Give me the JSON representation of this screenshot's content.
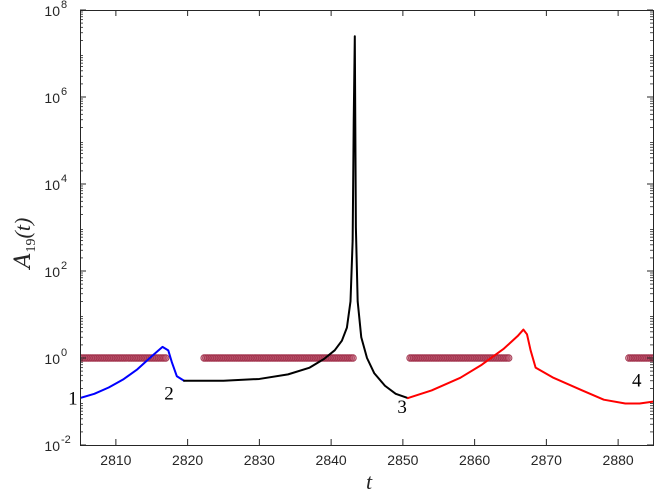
{
  "chart_data": {
    "type": "line",
    "title": "",
    "xlabel": "t",
    "ylabel_main": "A",
    "ylabel_sub": "19",
    "ylabel_rest": "(t)",
    "xlim": [
      2805,
      2885
    ],
    "ylim_log10": [
      -2,
      8
    ],
    "yscale": "log",
    "grid": false,
    "x_ticks": [
      {
        "value": 2810,
        "label": "2810"
      },
      {
        "value": 2820,
        "label": "2820"
      },
      {
        "value": 2830,
        "label": "2830"
      },
      {
        "value": 2840,
        "label": "2840"
      },
      {
        "value": 2850,
        "label": "2850"
      },
      {
        "value": 2860,
        "label": "2860"
      },
      {
        "value": 2870,
        "label": "2870"
      },
      {
        "value": 2880,
        "label": "2880"
      }
    ],
    "y_ticks": [
      {
        "log": -2,
        "label": "10",
        "exp": "-2"
      },
      {
        "log": 0,
        "label": "10",
        "exp": "0"
      },
      {
        "log": 2,
        "label": "10",
        "exp": "2"
      },
      {
        "log": 4,
        "label": "10",
        "exp": "4"
      },
      {
        "log": 6,
        "label": "10",
        "exp": "6"
      },
      {
        "log": 8,
        "label": "10",
        "exp": "8"
      }
    ],
    "series": [
      {
        "color": "#0000ff",
        "x": [
          2805,
          2807,
          2809,
          2811,
          2813,
          2815,
          2816.5,
          2817.3,
          2817.8,
          2818.5,
          2819.5
        ],
        "y": [
          0.12,
          0.15,
          0.21,
          0.32,
          0.55,
          1.1,
          1.8,
          1.5,
          0.8,
          0.38,
          0.3
        ]
      },
      {
        "color": "#000000",
        "x": [
          2819.5,
          2825,
          2830,
          2834,
          2837,
          2839,
          2840.5,
          2841.5,
          2842.2,
          2842.7,
          2843.0,
          2843.15,
          2843.3,
          2843.45,
          2843.7,
          2844.2,
          2845,
          2846,
          2847.5,
          2849,
          2850.7
        ],
        "y": [
          0.3,
          0.3,
          0.33,
          0.42,
          0.6,
          0.95,
          1.5,
          2.5,
          5,
          20,
          500,
          300000,
          25000000,
          1000,
          20,
          3,
          1,
          0.45,
          0.23,
          0.15,
          0.12
        ]
      },
      {
        "color": "#ff0000",
        "x": [
          2850.7,
          2854,
          2858,
          2861,
          2864,
          2866,
          2866.8,
          2867.3,
          2867.8,
          2868.5,
          2871,
          2875,
          2878,
          2881,
          2883,
          2885
        ],
        "y": [
          0.12,
          0.18,
          0.35,
          0.7,
          1.6,
          3.2,
          4.5,
          3.5,
          1.5,
          0.6,
          0.35,
          0.18,
          0.11,
          0.09,
          0.09,
          0.1
        ]
      }
    ],
    "markers": {
      "color": "#a0304a",
      "y": 1,
      "ranges": [
        [
          2805.2,
          2817
        ],
        [
          2822.3,
          2843.2
        ],
        [
          2851.0,
          2864.9
        ],
        [
          2881.5,
          2885
        ]
      ],
      "spacing": 0.25
    },
    "annotations": [
      {
        "text": "1",
        "x": 2804.0,
        "y": 0.085
      },
      {
        "text": "2",
        "x": 2817.4,
        "y": 0.11
      },
      {
        "text": "3",
        "x": 2849.9,
        "y": 0.055
      },
      {
        "text": "4",
        "x": 2882.6,
        "y": 0.22
      }
    ]
  }
}
